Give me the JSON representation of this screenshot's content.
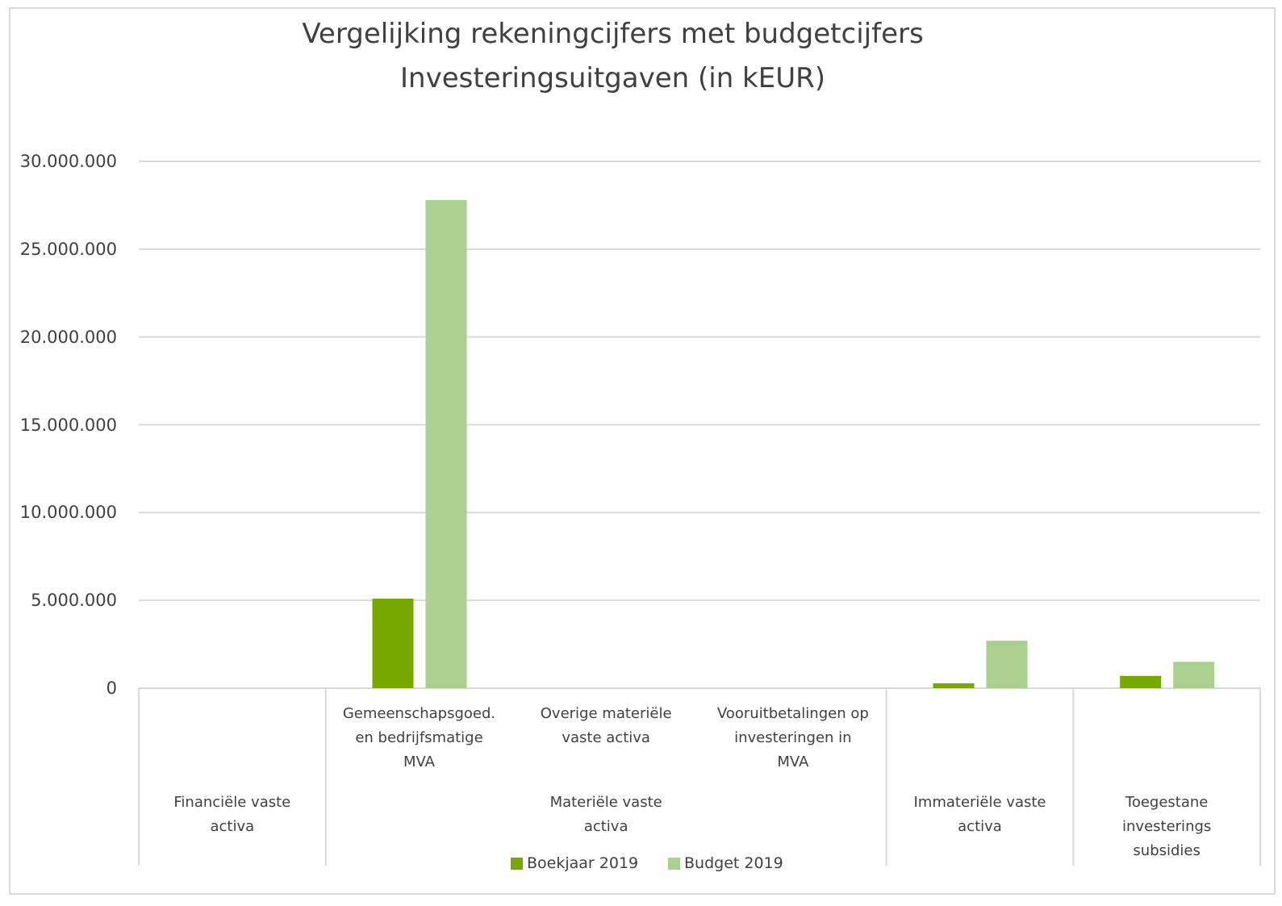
{
  "chart_data": {
    "type": "bar",
    "title": "Vergelijking rekeningcijfers met budgetcijfers",
    "subtitle": "Investeringsuitgaven (in kEUR)",
    "groups": [
      {
        "label": "Financiële vaste activa",
        "categories": [
          null
        ]
      },
      {
        "label": "Materiële vaste activa",
        "categories": [
          "Gemeenschapsgoed. en bedrijfsmatige MVA",
          "Overige materiële vaste activa",
          "Vooruitbetalingen op investeringen in MVA"
        ]
      },
      {
        "label": "Immateriële vaste activa",
        "categories": [
          null
        ]
      },
      {
        "label": "Toegestane investerings subsidies",
        "categories": [
          null
        ]
      }
    ],
    "series": [
      {
        "name": "Boekjaar 2019",
        "color": "#77a800",
        "values": [
          0,
          5100000,
          0,
          0,
          280000,
          700000
        ]
      },
      {
        "name": "Budget 2019",
        "color": "#a9d08e",
        "values": [
          0,
          27800000,
          0,
          0,
          2700000,
          1500000
        ]
      }
    ],
    "ylim": [
      0,
      30000000
    ],
    "yticks": [
      0,
      {
        "value": 5000000,
        "label": "5.000.000"
      },
      {
        "value": 10000000,
        "label": "10.000.000"
      },
      {
        "value": 15000000,
        "label": "15.000.000"
      },
      {
        "value": 20000000,
        "label": "20.000.000"
      },
      {
        "value": 25000000,
        "label": "25.000.000"
      },
      {
        "value": 30000000,
        "label": "30.000.000"
      }
    ],
    "grid": true,
    "legend": "bottom"
  }
}
